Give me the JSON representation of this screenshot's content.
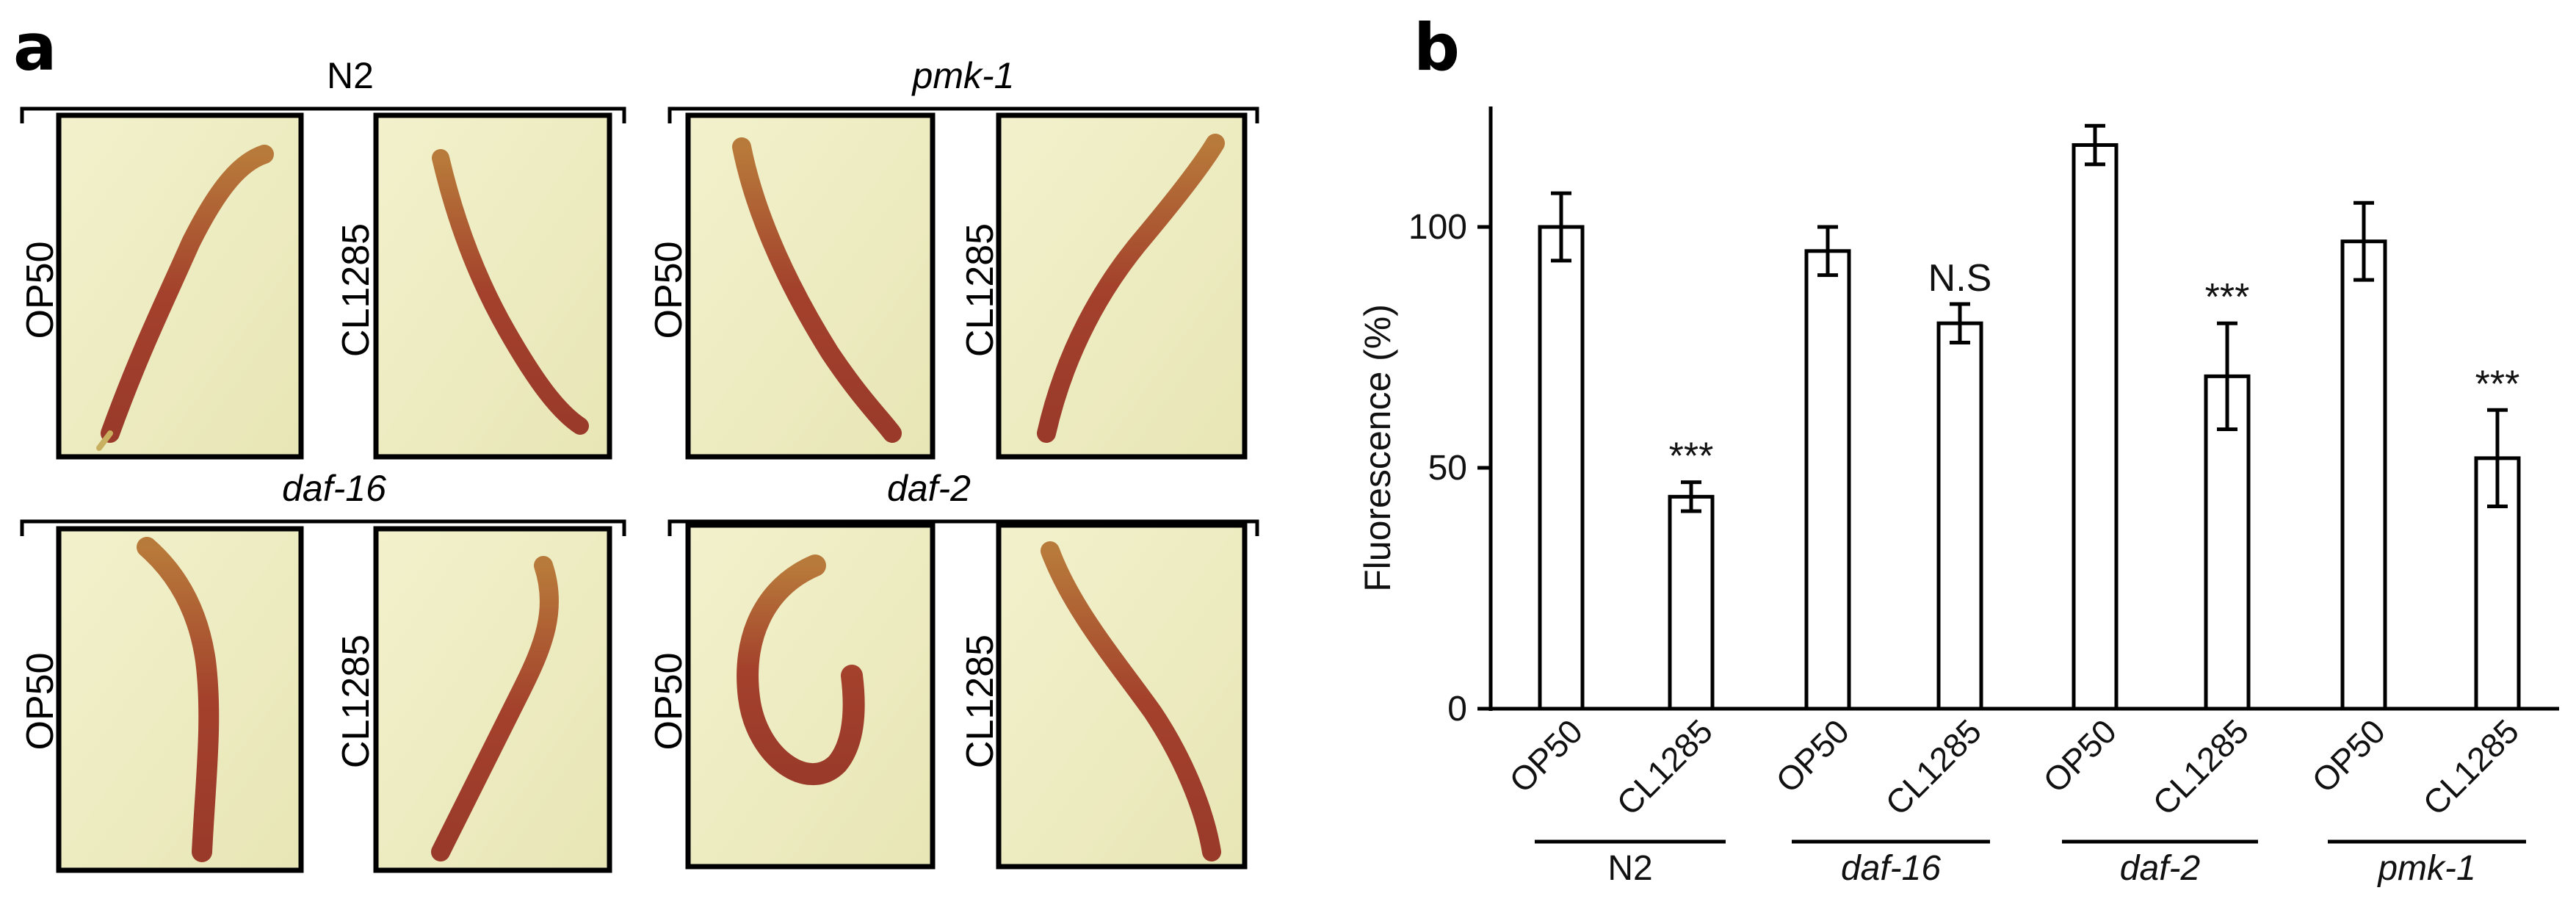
{
  "panel_a": {
    "letter": "a",
    "groups": [
      {
        "title": "N2",
        "italic": false,
        "labels": [
          "OP50",
          "CL1285"
        ]
      },
      {
        "title": "pmk-1",
        "italic": true,
        "labels": [
          "OP50",
          "CL1285"
        ]
      },
      {
        "title": "daf-16",
        "italic": true,
        "labels": [
          "OP50",
          "CL1285"
        ]
      },
      {
        "title": "daf-2",
        "italic": true,
        "labels": [
          "OP50",
          "CL1285"
        ]
      }
    ]
  },
  "panel_b": {
    "letter": "b"
  },
  "chart_data": {
    "type": "bar",
    "title": "",
    "ylabel": "Fluorescence (%)",
    "xlabel": "",
    "ylim": [
      0,
      125
    ],
    "yticks": [
      0,
      50,
      100
    ],
    "categories": [
      "OP50",
      "CL1285",
      "OP50",
      "CL1285",
      "OP50",
      "CL1285",
      "OP50",
      "CL1285"
    ],
    "values": [
      100,
      44,
      95,
      80,
      117,
      69,
      97,
      52
    ],
    "errors": [
      7,
      3,
      5,
      4,
      4,
      11,
      8,
      10
    ],
    "annotations": [
      "",
      "***",
      "",
      "N.S",
      "",
      "***",
      "",
      "***"
    ],
    "groups": [
      {
        "name": "N2",
        "italic": false
      },
      {
        "name": "daf-16",
        "italic": true
      },
      {
        "name": "daf-2",
        "italic": true
      },
      {
        "name": "pmk-1",
        "italic": true
      }
    ],
    "grid": false,
    "bar_color": "#ffffff",
    "edge_color": "#000000"
  }
}
